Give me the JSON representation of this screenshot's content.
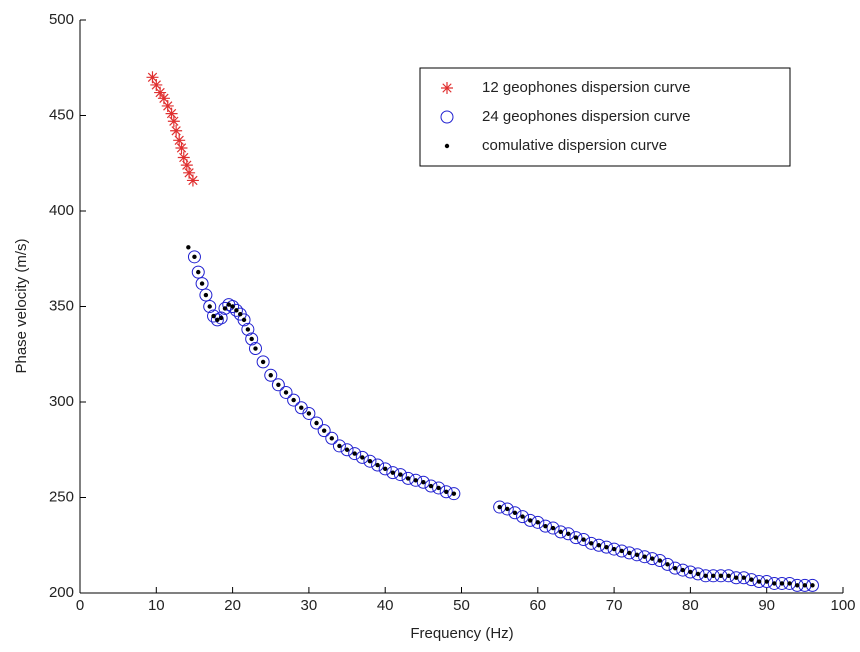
{
  "chart_data": {
    "type": "scatter",
    "xlabel": "Frequency (Hz)",
    "ylabel": "Phase velocity (m/s)",
    "xlim": [
      0,
      100
    ],
    "ylim": [
      200,
      500
    ],
    "xticks": [
      0,
      10,
      20,
      30,
      40,
      50,
      60,
      70,
      80,
      90,
      100
    ],
    "yticks": [
      200,
      250,
      300,
      350,
      400,
      450,
      500
    ],
    "legend": "upper right",
    "series": [
      {
        "name": "12 geophones dispersion curve",
        "color": "#e03030",
        "marker": "asterisk",
        "x": [
          9.5,
          10,
          10.5,
          11,
          11.5,
          12,
          12.3,
          12.6,
          13,
          13.3,
          13.6,
          14,
          14.3,
          14.8
        ],
        "values": [
          470,
          466,
          462,
          459,
          455,
          451,
          447,
          442,
          437,
          433,
          428,
          424,
          420,
          416
        ]
      },
      {
        "name": "24 geophones dispersion curve",
        "color": "#2020d0",
        "marker": "circle",
        "x": [
          15,
          15.5,
          16,
          16.5,
          17,
          17.5,
          18,
          18.5,
          19,
          19.5,
          20,
          20.5,
          21,
          21.5,
          22,
          22.5,
          23,
          24,
          25,
          26,
          27,
          28,
          29,
          30,
          31,
          32,
          33,
          34,
          35,
          36,
          37,
          38,
          39,
          40,
          41,
          42,
          43,
          44,
          45,
          46,
          47,
          48,
          49,
          55,
          56,
          57,
          58,
          59,
          60,
          61,
          62,
          63,
          64,
          65,
          66,
          67,
          68,
          69,
          70,
          71,
          72,
          73,
          74,
          75,
          76,
          77,
          78,
          79,
          80,
          81,
          82,
          83,
          84,
          85,
          86,
          87,
          88,
          89,
          90,
          91,
          92,
          93,
          94,
          95,
          96
        ],
        "values": [
          376,
          368,
          362,
          356,
          350,
          345,
          343,
          344,
          349,
          351,
          350,
          348,
          346,
          343,
          338,
          333,
          328,
          321,
          314,
          309,
          305,
          301,
          297,
          294,
          289,
          285,
          281,
          277,
          275,
          273,
          271,
          269,
          267,
          265,
          263,
          262,
          260,
          259,
          258,
          256,
          255,
          253,
          252,
          245,
          244,
          242,
          240,
          238,
          237,
          235,
          234,
          232,
          231,
          229,
          228,
          226,
          225,
          224,
          223,
          222,
          221,
          220,
          219,
          218,
          217,
          215,
          213,
          212,
          211,
          210,
          209,
          209,
          209,
          209,
          208,
          208,
          207,
          206,
          206,
          205,
          205,
          205,
          204,
          204,
          204
        ]
      },
      {
        "name": "comulative dispersion curve",
        "color": "#000000",
        "marker": "dot",
        "x": [
          14.2,
          15,
          15.5,
          16,
          16.5,
          17,
          17.5,
          18,
          18.5,
          19,
          19.5,
          20,
          20.5,
          21,
          21.5,
          22,
          22.5,
          23,
          24,
          25,
          26,
          27,
          28,
          29,
          30,
          31,
          32,
          33,
          34,
          35,
          36,
          37,
          38,
          39,
          40,
          41,
          42,
          43,
          44,
          45,
          46,
          47,
          48,
          49,
          55,
          56,
          57,
          58,
          59,
          60,
          61,
          62,
          63,
          64,
          65,
          66,
          67,
          68,
          69,
          70,
          71,
          72,
          73,
          74,
          75,
          76,
          77,
          78,
          79,
          80,
          81,
          82,
          83,
          84,
          85,
          86,
          87,
          88,
          89,
          90,
          91,
          92,
          93,
          94,
          95,
          96
        ],
        "values": [
          381,
          376,
          368,
          362,
          356,
          350,
          345,
          343,
          344,
          349,
          351,
          350,
          348,
          346,
          343,
          338,
          333,
          328,
          321,
          314,
          309,
          305,
          301,
          297,
          294,
          289,
          285,
          281,
          277,
          275,
          273,
          271,
          269,
          267,
          265,
          263,
          262,
          260,
          259,
          258,
          256,
          255,
          253,
          252,
          245,
          244,
          242,
          240,
          238,
          237,
          235,
          234,
          232,
          231,
          229,
          228,
          226,
          225,
          224,
          223,
          222,
          221,
          220,
          219,
          218,
          217,
          215,
          213,
          212,
          211,
          210,
          209,
          209,
          209,
          209,
          208,
          208,
          207,
          206,
          206,
          205,
          205,
          205,
          204,
          204,
          204
        ]
      }
    ]
  }
}
